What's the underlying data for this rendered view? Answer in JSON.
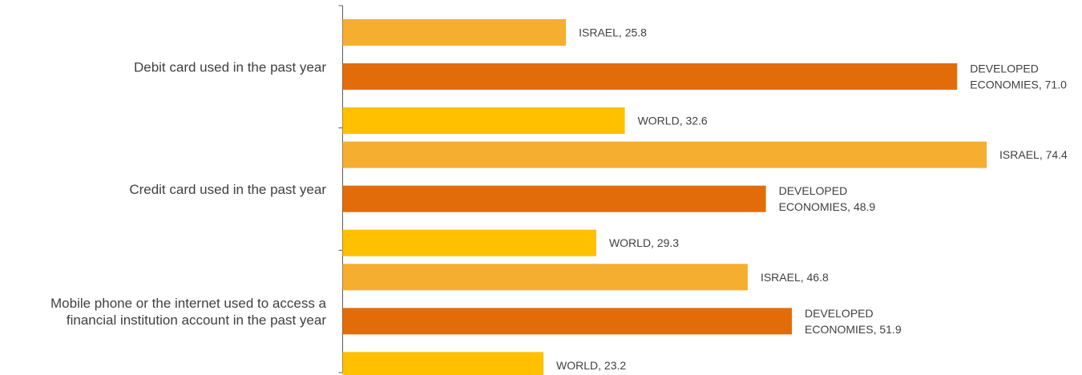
{
  "chart_data": {
    "type": "bar",
    "orientation": "horizontal",
    "categories": [
      [
        "Debit card used in the past year"
      ],
      [
        "Credit card used in the past year"
      ],
      [
        "Mobile phone or the internet used to access a",
        "financial institution account in the past year"
      ]
    ],
    "series": [
      {
        "name": "ISRAEL",
        "label_lines": [
          "ISRAEL, {v}"
        ],
        "values": [
          25.8,
          74.4,
          46.8
        ],
        "color": "#F5AE2F"
      },
      {
        "name": "DEVELOPED ECONOMIES",
        "label_lines": [
          "DEVELOPED",
          "ECONOMIES, {v}"
        ],
        "values": [
          71.0,
          48.9,
          51.9
        ],
        "color": "#E36C0A"
      },
      {
        "name": "WORLD",
        "label_lines": [
          "WORLD, {v}"
        ],
        "values": [
          32.6,
          29.3,
          23.2
        ],
        "color": "#FFC000"
      }
    ],
    "xlim": [
      0,
      80
    ],
    "grid": false,
    "legend": "none",
    "data_labels": true
  }
}
